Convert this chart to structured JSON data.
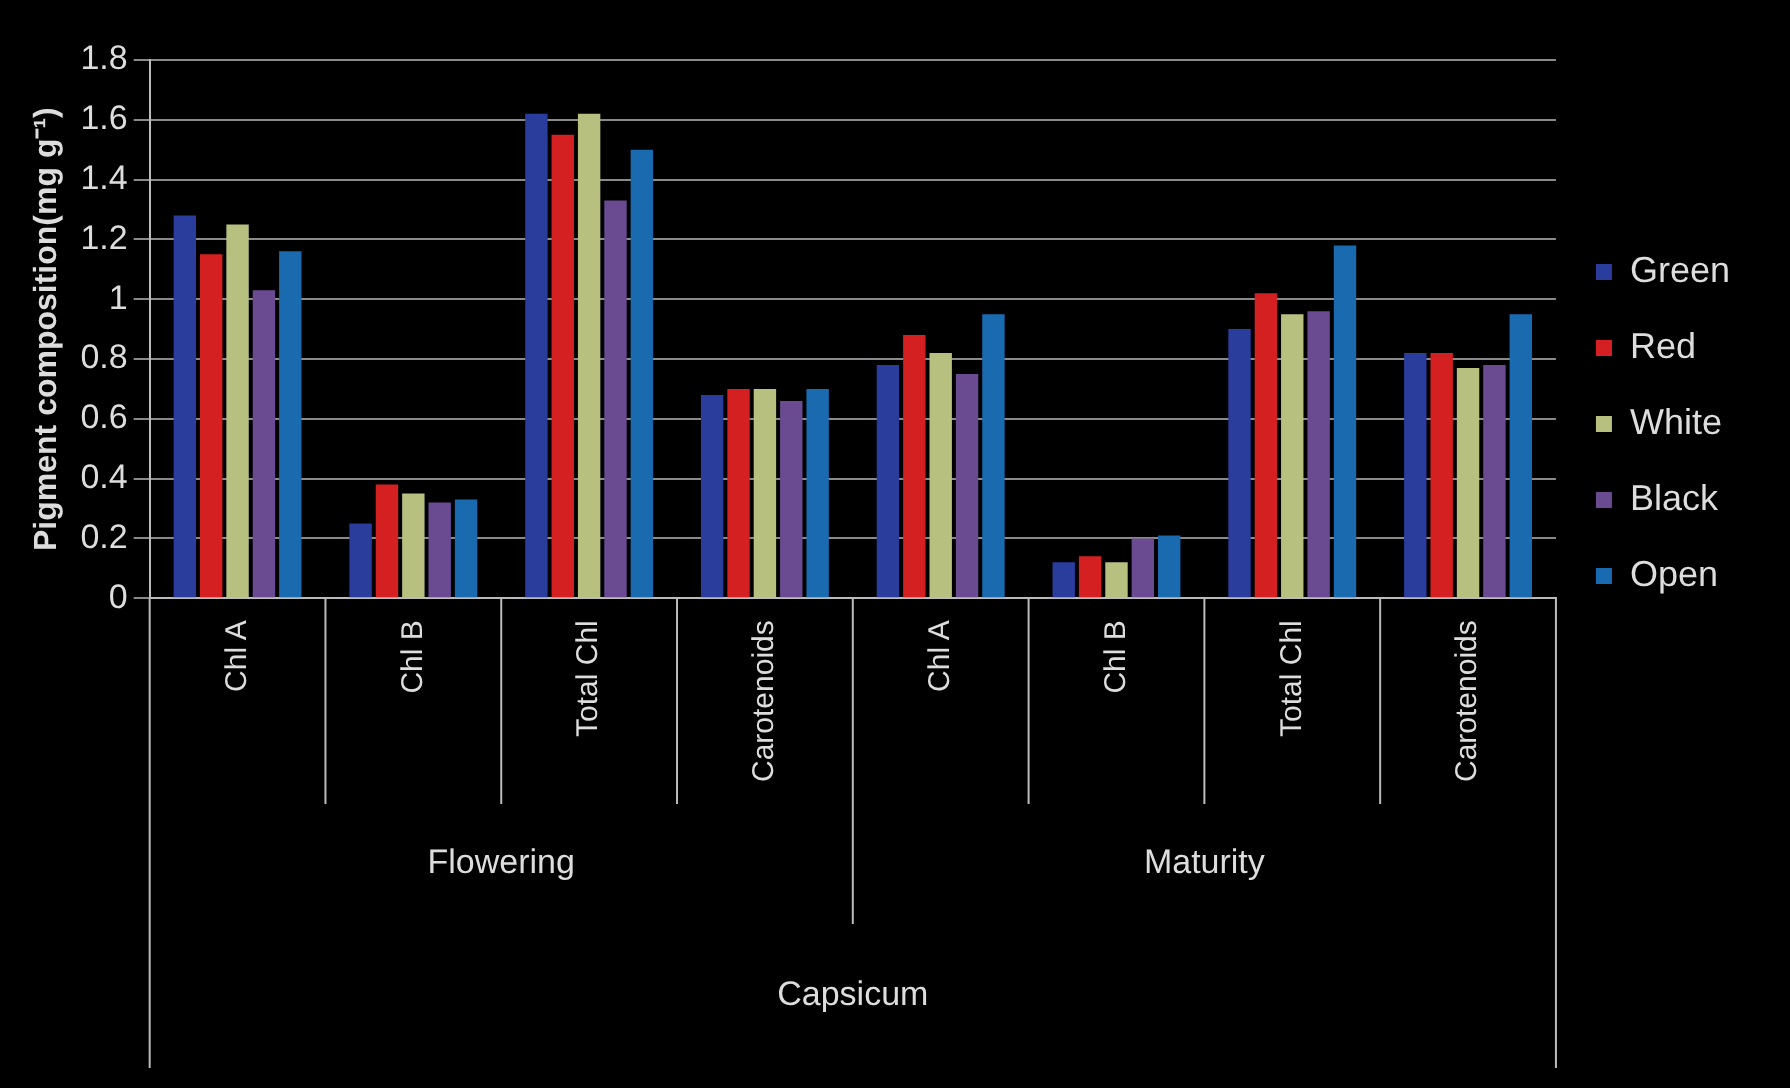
{
  "chart_data": {
    "type": "bar",
    "ylabel": "Pigment composition(mg g⁻¹)",
    "categories": [
      "Chl A",
      "Chl B",
      "Total Chl",
      "Carotenoids",
      "Chl A",
      "Chl B",
      "Total Chl",
      "Carotenoids"
    ],
    "series": [
      {
        "name": "Green",
        "color": "#2a3c9c",
        "values": [
          1.28,
          0.25,
          1.62,
          0.68,
          0.78,
          0.12,
          0.9,
          0.82
        ]
      },
      {
        "name": "Red",
        "color": "#d42020",
        "values": [
          1.15,
          0.38,
          1.55,
          0.7,
          0.88,
          0.14,
          1.02,
          0.82
        ]
      },
      {
        "name": "White",
        "color": "#b8c080",
        "values": [
          1.25,
          0.35,
          1.62,
          0.7,
          0.82,
          0.12,
          0.95,
          0.77
        ]
      },
      {
        "name": "Black",
        "color": "#6a4a90",
        "values": [
          1.03,
          0.32,
          1.33,
          0.66,
          0.75,
          0.2,
          0.96,
          0.78
        ]
      },
      {
        "name": "Open",
        "color": "#1a6ab0",
        "values": [
          1.16,
          0.33,
          1.5,
          0.7,
          0.95,
          0.21,
          1.18,
          0.95
        ]
      }
    ],
    "annotations": [
      "Flowering",
      "Maturity",
      "Capsicum"
    ],
    "ylim": [
      0,
      1.8
    ],
    "yticks": [
      0,
      0.2,
      0.4,
      0.6,
      0.8,
      1,
      1.2,
      1.4,
      1.6,
      1.8
    ],
    "grid": "y",
    "legend": "right"
  }
}
